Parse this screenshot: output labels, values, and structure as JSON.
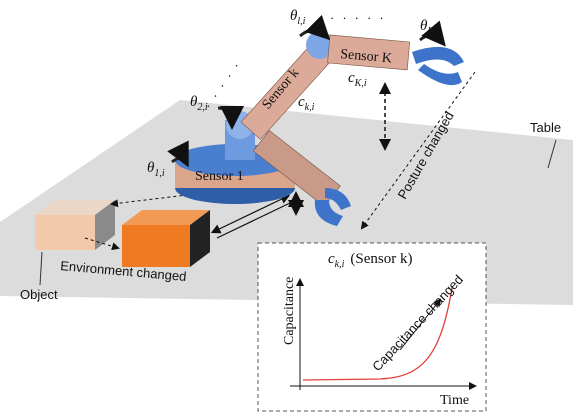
{
  "robot": {
    "joint_angles": [
      {
        "symbol": "θ",
        "sub": "1,i"
      },
      {
        "symbol": "θ",
        "sub": "2,i"
      },
      {
        "symbol": "θ",
        "sub": "l,i"
      },
      {
        "symbol": "θ",
        "sub": "L,i"
      }
    ],
    "sensors": [
      "Sensor 1",
      "Sensor k",
      "Sensor K"
    ],
    "capacitances": [
      {
        "symbol": "c",
        "sub": "k,i"
      },
      {
        "symbol": "c",
        "sub": "K,i"
      }
    ]
  },
  "scene": {
    "table": "Table",
    "object": "Object",
    "environment": "Environment changed",
    "posture": "Posture changed"
  },
  "inset": {
    "title": {
      "symbol": "c",
      "sub": "k,i",
      "text": "(Sensor k)"
    },
    "y_label": "Capacitance",
    "x_label": "Time",
    "annotation": "Capacitance changed"
  }
}
